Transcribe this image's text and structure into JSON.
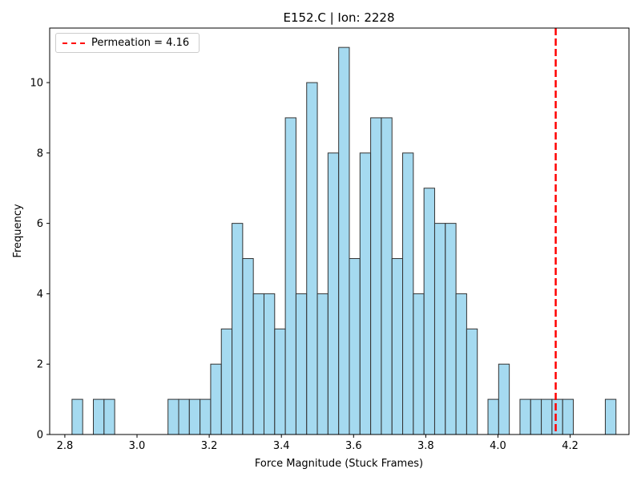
{
  "chart_data": {
    "type": "bar",
    "title": "E152.C | Ion: 2228",
    "xlabel": "Force Magnitude (Stuck Frames)",
    "ylabel": "Frequency",
    "xlim": [
      2.758,
      4.363
    ],
    "ylim": [
      0,
      11.55
    ],
    "x_ticks": [
      "2.8",
      "3.0",
      "3.2",
      "3.4",
      "3.6",
      "3.8",
      "4.0",
      "4.2"
    ],
    "y_ticks": [
      "0",
      "2",
      "4",
      "6",
      "8",
      "10"
    ],
    "bin_start": 2.8199,
    "bin_width": 0.02955,
    "values": [
      1,
      0,
      1,
      1,
      0,
      0,
      0,
      0,
      0,
      1,
      1,
      1,
      1,
      2,
      3,
      6,
      5,
      4,
      4,
      3,
      9,
      4,
      10,
      4,
      8,
      11,
      5,
      8,
      9,
      9,
      5,
      8,
      4,
      7,
      6,
      6,
      4,
      3,
      0,
      1,
      2,
      0,
      1,
      1,
      1,
      1,
      1,
      0,
      0,
      0,
      1
    ],
    "bar_color": "#87CEEB",
    "bar_edge_color": "#333333",
    "grid": false,
    "legend_position": "upper-left",
    "vline": {
      "x": 4.16,
      "label": "Permeation = 4.16",
      "color": "#ff0000",
      "style": "dashed"
    }
  }
}
